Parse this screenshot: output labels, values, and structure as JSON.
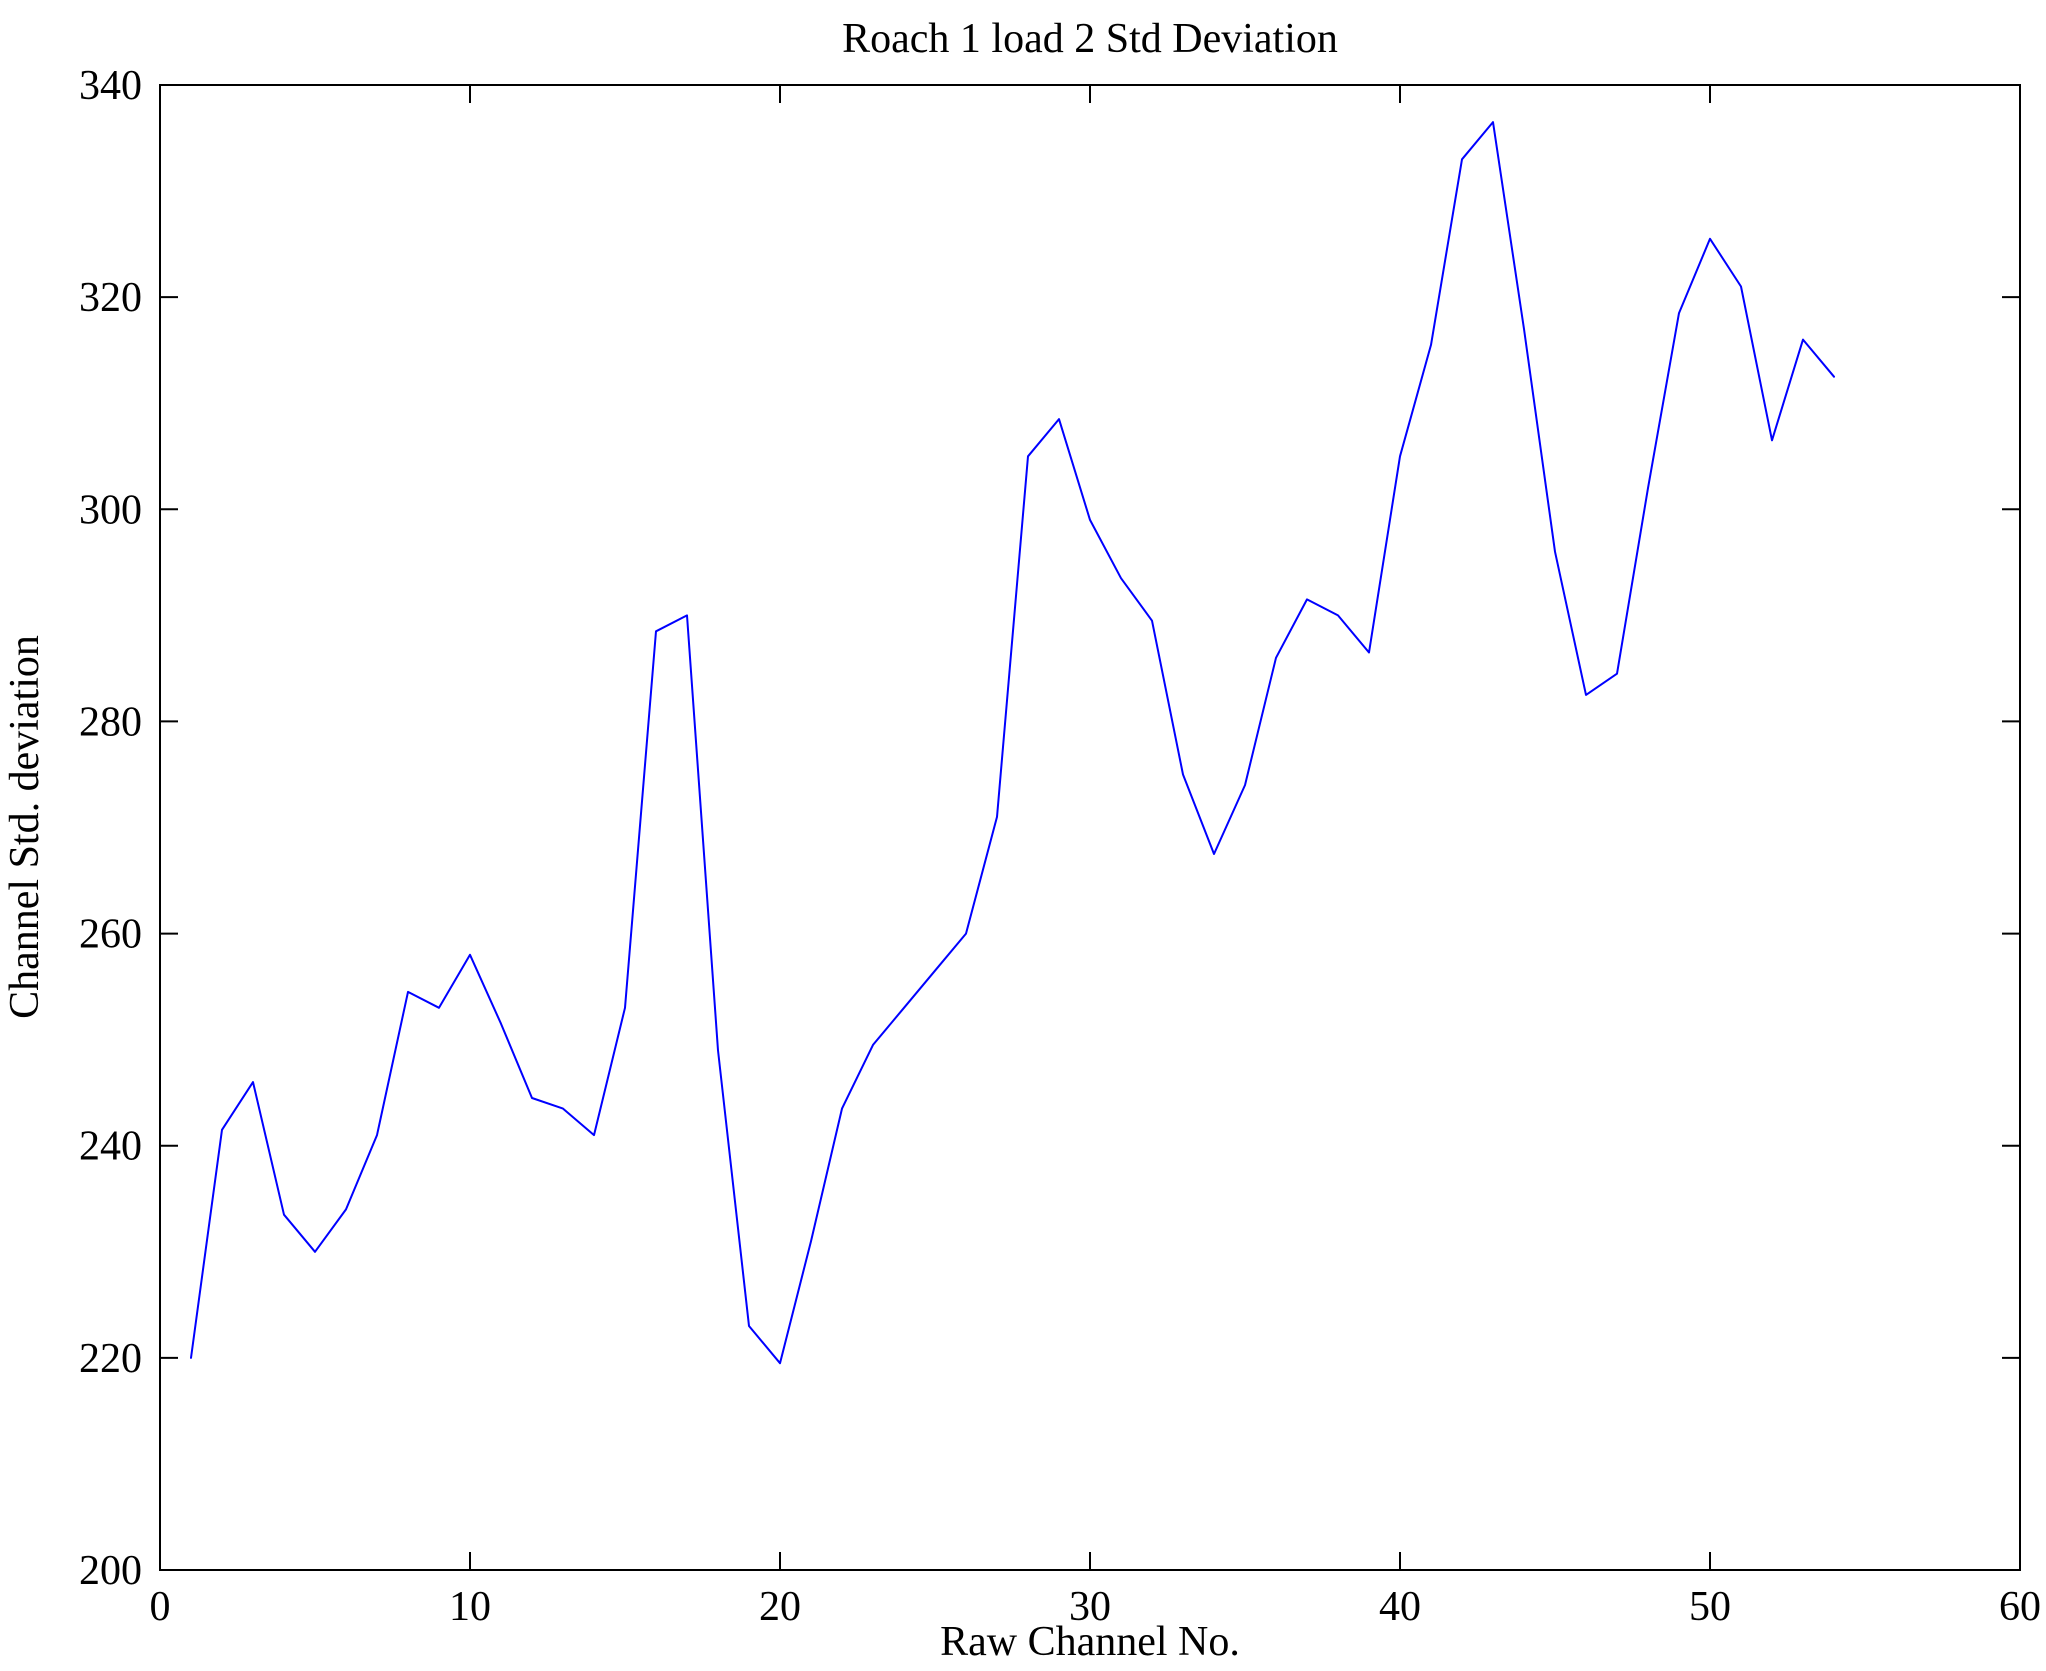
{
  "figure": {
    "background": "#ffffff"
  },
  "chart_data": {
    "type": "line",
    "title": "Roach 1 load 2 Std Deviation",
    "xlabel": "Raw Channel No.",
    "ylabel": "Channel Std. deviation",
    "xlim": [
      0,
      60
    ],
    "ylim": [
      200,
      340
    ],
    "xticks": [
      0,
      10,
      20,
      30,
      40,
      50,
      60
    ],
    "yticks": [
      200,
      220,
      240,
      260,
      280,
      300,
      320,
      340
    ],
    "grid": false,
    "legend": "none",
    "line_color": "#0000ff",
    "axis_color": "#000000",
    "series": [
      {
        "name": "Channel Std. deviation",
        "x": [
          1,
          2,
          3,
          4,
          5,
          6,
          7,
          8,
          9,
          10,
          11,
          12,
          13,
          14,
          15,
          16,
          17,
          18,
          19,
          20,
          21,
          22,
          23,
          24,
          25,
          26,
          27,
          28,
          29,
          30,
          31,
          32,
          33,
          34,
          35,
          36,
          37,
          38,
          39,
          40,
          41,
          42,
          43,
          44,
          45,
          46,
          47,
          48,
          49,
          50,
          51,
          52,
          53,
          54
        ],
        "y": [
          220,
          241.5,
          246,
          233.5,
          230,
          234,
          241,
          254.5,
          253,
          258,
          251.5,
          244.5,
          243.5,
          241,
          253,
          288.5,
          290,
          249,
          223,
          219.5,
          231,
          243.5,
          249.5,
          253,
          256.5,
          260,
          271,
          305,
          308.5,
          299,
          293.5,
          289.5,
          275,
          267.5,
          274,
          286,
          291.5,
          290,
          286.5,
          305,
          315.5,
          333,
          336.5,
          317,
          296,
          282.5,
          284.5,
          302,
          318.5,
          325.5,
          321,
          306.5,
          316,
          312.5
        ]
      }
    ]
  }
}
